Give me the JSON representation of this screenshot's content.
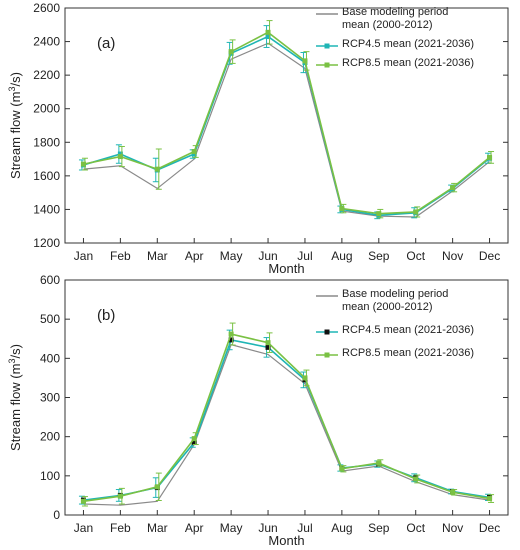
{
  "chart_data": [
    {
      "panel_label": "(a)",
      "type": "line",
      "categories": [
        "Jan",
        "Feb",
        "Mar",
        "Apr",
        "May",
        "Jun",
        "Jul",
        "Aug",
        "Sep",
        "Oct",
        "Nov",
        "Dec"
      ],
      "xlabel": "Month",
      "ylabel_html": "Stream flow (m<tspan baseline-shift=\"super\" font-size=\"9\">3</tspan>/s)",
      "ylim": [
        1200,
        2600
      ],
      "yticks": [
        1200,
        1400,
        1600,
        1800,
        2000,
        2200,
        2400,
        2600
      ],
      "legend_position": "top-right",
      "series": [
        {
          "name": "Base modeling period mean (2000-2012)",
          "legend_lines": [
            "Base modeling period",
            "mean (2000-2012)"
          ],
          "color": "#8a8a8a",
          "marker": "none",
          "values": [
            1640,
            1660,
            1525,
            1700,
            2295,
            2390,
            2240,
            1390,
            1360,
            1355,
            1510,
            1685
          ]
        },
        {
          "name": "RCP4.5 mean (2021-2036)",
          "legend_lines": [
            "RCP4.5 mean (2021-2036)"
          ],
          "color": "#1fb5b5",
          "marker": "square-dark",
          "values": [
            1665,
            1730,
            1635,
            1730,
            2330,
            2430,
            2275,
            1400,
            1365,
            1380,
            1525,
            1705
          ],
          "err": [
            30,
            55,
            70,
            25,
            65,
            65,
            60,
            20,
            20,
            30,
            20,
            30
          ]
        },
        {
          "name": "RCP8.5 mean (2021-2036)",
          "legend_lines": [
            "RCP8.5 mean (2021-2036)"
          ],
          "color": "#7ac143",
          "marker": "square-green",
          "values": [
            1670,
            1715,
            1640,
            1745,
            2340,
            2455,
            2285,
            1405,
            1375,
            1385,
            1530,
            1710
          ],
          "err": [
            35,
            60,
            120,
            35,
            70,
            70,
            55,
            25,
            25,
            30,
            25,
            35
          ]
        }
      ]
    },
    {
      "panel_label": "(b)",
      "type": "line",
      "categories": [
        "Jan",
        "Feb",
        "Mar",
        "Apr",
        "May",
        "Jun",
        "Jul",
        "Aug",
        "Sep",
        "Oct",
        "Nov",
        "Dec"
      ],
      "xlabel": "Month",
      "ylabel_html": "Stream flow (m<tspan baseline-shift=\"super\" font-size=\"9\">3</tspan>/s)",
      "ylim": [
        0,
        600
      ],
      "yticks": [
        0,
        100,
        200,
        300,
        400,
        500,
        600
      ],
      "legend_position": "top-right",
      "series": [
        {
          "name": "Base modeling period mean (2000-2012)",
          "legend_lines": [
            "Base modeling period",
            "mean (2000-2012)"
          ],
          "color": "#8a8a8a",
          "marker": "none",
          "values": [
            28,
            25,
            35,
            180,
            435,
            410,
            335,
            112,
            125,
            85,
            52,
            38
          ]
        },
        {
          "name": "RCP4.5 mean (2021-2036)",
          "legend_lines": [
            "RCP4.5 mean (2021-2036)"
          ],
          "color": "#1fb5b5",
          "marker": "square-dark",
          "values": [
            38,
            50,
            70,
            185,
            447,
            428,
            345,
            120,
            130,
            95,
            60,
            45
          ],
          "err": [
            10,
            15,
            25,
            12,
            25,
            25,
            20,
            8,
            8,
            10,
            6,
            8
          ]
        },
        {
          "name": "RCP8.5 mean (2021-2036)",
          "legend_lines": [
            "RCP8.5 mean (2021-2036)"
          ],
          "color": "#7ac143",
          "marker": "square-green",
          "values": [
            35,
            48,
            72,
            195,
            462,
            440,
            350,
            118,
            133,
            92,
            58,
            42
          ],
          "err": [
            12,
            20,
            35,
            15,
            28,
            25,
            20,
            8,
            8,
            10,
            7,
            10
          ]
        }
      ]
    }
  ]
}
